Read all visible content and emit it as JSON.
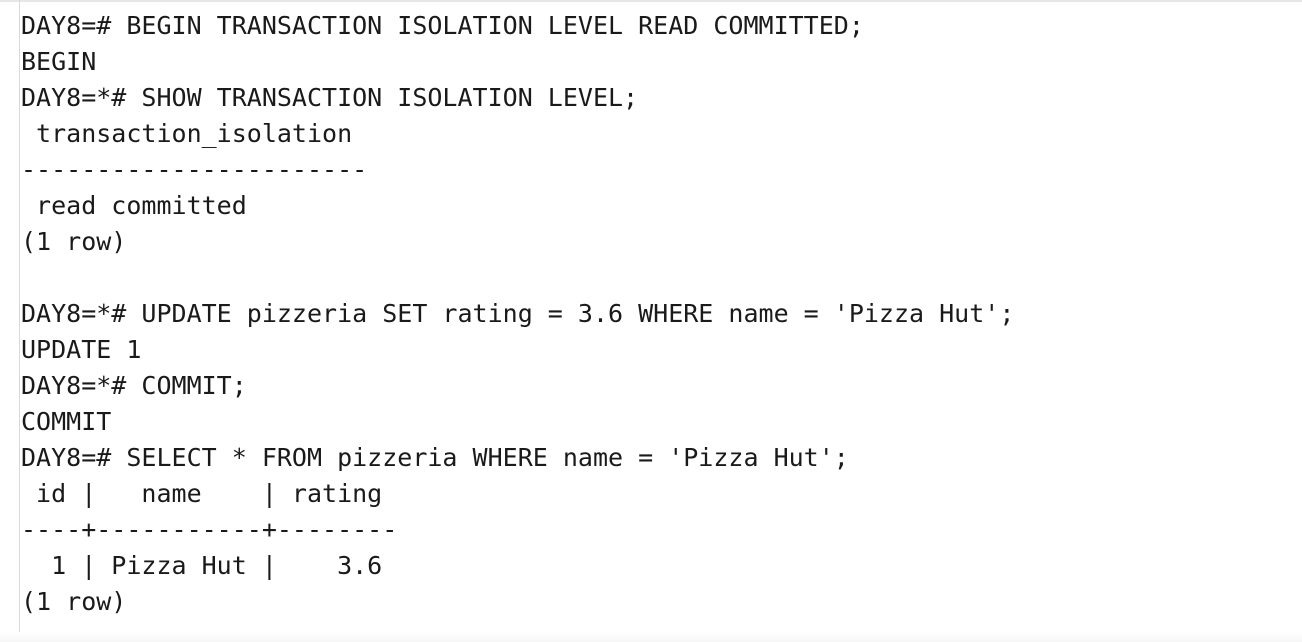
{
  "terminal": {
    "lines": [
      "DAY8=# BEGIN TRANSACTION ISOLATION LEVEL READ COMMITTED;",
      "BEGIN",
      "DAY8=*# SHOW TRANSACTION ISOLATION LEVEL;",
      " transaction_isolation",
      "-----------------------",
      " read committed",
      "(1 row)",
      "",
      "DAY8=*# UPDATE pizzeria SET rating = 3.6 WHERE name = 'Pizza Hut';",
      "UPDATE 1",
      "DAY8=*# COMMIT;",
      "COMMIT",
      "DAY8=# SELECT * FROM pizzeria WHERE name = 'Pizza Hut';",
      " id |   name    | rating",
      "----+-----------+--------",
      "  1 | Pizza Hut |    3.6",
      "(1 row)"
    ]
  }
}
